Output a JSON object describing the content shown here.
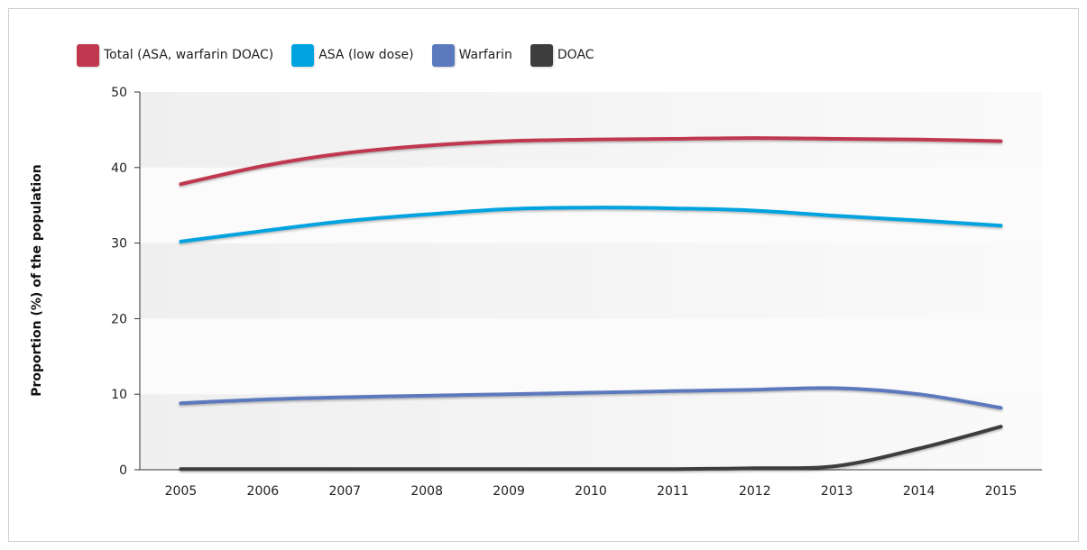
{
  "chart_data": {
    "type": "line",
    "title": "",
    "xlabel": "",
    "ylabel": "Proportion (%) of the population",
    "categories": [
      "2005",
      "2006",
      "2007",
      "2008",
      "2009",
      "2010",
      "2011",
      "2012",
      "2013",
      "2014",
      "2015"
    ],
    "ylim": [
      0,
      50
    ],
    "yticks": [
      "0",
      "10",
      "20",
      "30",
      "40",
      "50"
    ],
    "grid": false,
    "legend_position": "top-left",
    "series": [
      {
        "name": "Total (ASA, warfarin DOAC)",
        "color": "#c0384f",
        "values": [
          37.8,
          40.2,
          41.9,
          42.9,
          43.5,
          43.7,
          43.8,
          43.9,
          43.8,
          43.7,
          43.5
        ]
      },
      {
        "name": "ASA (low dose)",
        "color": "#00a3e0",
        "values": [
          30.2,
          31.6,
          32.9,
          33.8,
          34.5,
          34.7,
          34.6,
          34.3,
          33.6,
          33.0,
          32.3
        ]
      },
      {
        "name": "Warfarin",
        "color": "#5b79bd",
        "values": [
          8.8,
          9.3,
          9.6,
          9.8,
          10.0,
          10.2,
          10.4,
          10.6,
          10.8,
          10.0,
          8.2
        ]
      },
      {
        "name": "DOAC",
        "color": "#3d3d3d",
        "values": [
          0.1,
          0.1,
          0.1,
          0.1,
          0.1,
          0.1,
          0.1,
          0.2,
          0.5,
          2.8,
          5.7
        ]
      }
    ]
  }
}
